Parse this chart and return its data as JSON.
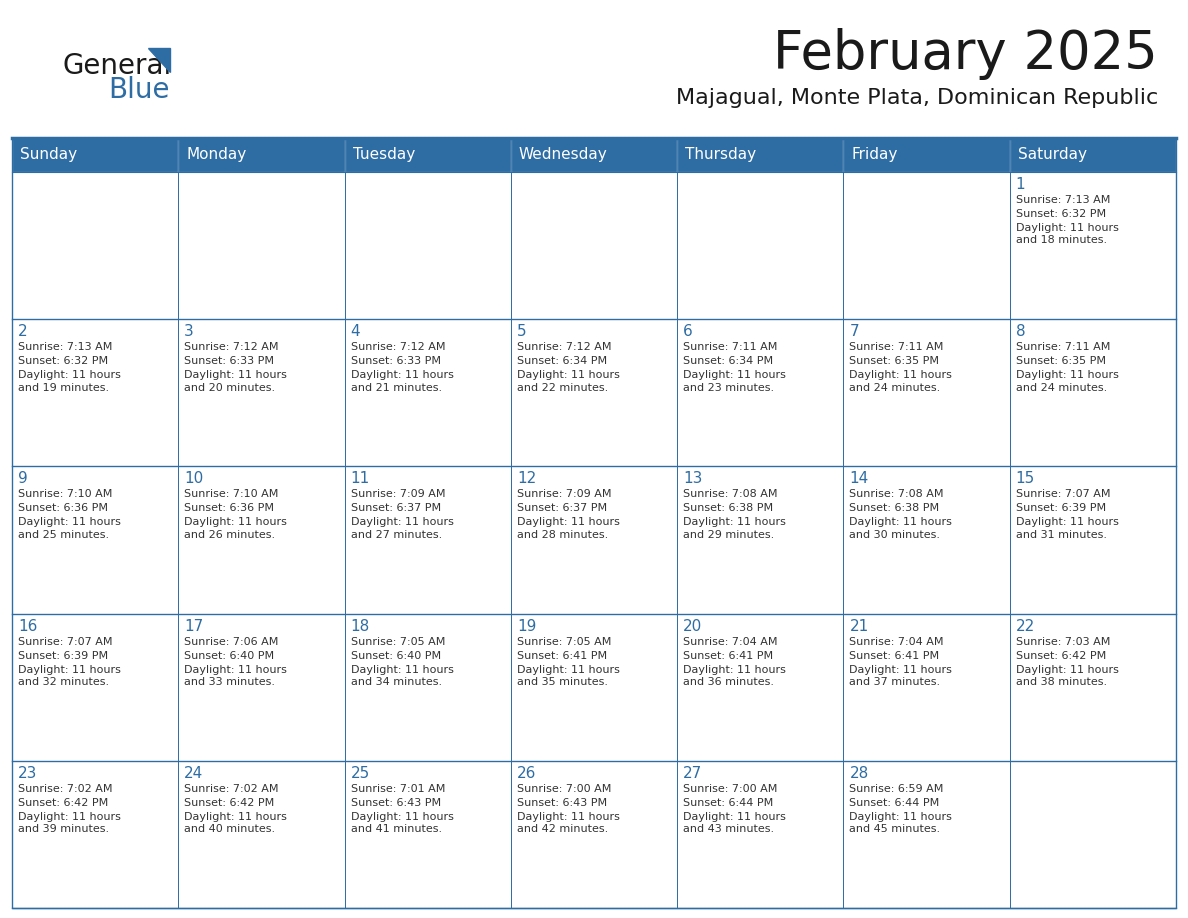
{
  "title": "February 2025",
  "subtitle": "Majagual, Monte Plata, Dominican Republic",
  "header_color": "#2e6da4",
  "header_text_color": "#ffffff",
  "border_color": "#2e6da4",
  "cell_bg_color": "#ffffff",
  "day_headers": [
    "Sunday",
    "Monday",
    "Tuesday",
    "Wednesday",
    "Thursday",
    "Friday",
    "Saturday"
  ],
  "title_color": "#1a1a1a",
  "subtitle_color": "#1a1a1a",
  "day_num_color": "#2e6da4",
  "info_color": "#333333",
  "logo_color_general": "#1a1a1a",
  "logo_color_blue": "#2e6da4",
  "logo_triangle_color": "#2e6da4",
  "calendar": [
    [
      null,
      null,
      null,
      null,
      null,
      null,
      {
        "day": "1",
        "sunrise": "7:13 AM",
        "sunset": "6:32 PM",
        "daylight": "11 hours\nand 18 minutes."
      }
    ],
    [
      {
        "day": "2",
        "sunrise": "7:13 AM",
        "sunset": "6:32 PM",
        "daylight": "11 hours\nand 19 minutes."
      },
      {
        "day": "3",
        "sunrise": "7:12 AM",
        "sunset": "6:33 PM",
        "daylight": "11 hours\nand 20 minutes."
      },
      {
        "day": "4",
        "sunrise": "7:12 AM",
        "sunset": "6:33 PM",
        "daylight": "11 hours\nand 21 minutes."
      },
      {
        "day": "5",
        "sunrise": "7:12 AM",
        "sunset": "6:34 PM",
        "daylight": "11 hours\nand 22 minutes."
      },
      {
        "day": "6",
        "sunrise": "7:11 AM",
        "sunset": "6:34 PM",
        "daylight": "11 hours\nand 23 minutes."
      },
      {
        "day": "7",
        "sunrise": "7:11 AM",
        "sunset": "6:35 PM",
        "daylight": "11 hours\nand 24 minutes."
      },
      {
        "day": "8",
        "sunrise": "7:11 AM",
        "sunset": "6:35 PM",
        "daylight": "11 hours\nand 24 minutes."
      }
    ],
    [
      {
        "day": "9",
        "sunrise": "7:10 AM",
        "sunset": "6:36 PM",
        "daylight": "11 hours\nand 25 minutes."
      },
      {
        "day": "10",
        "sunrise": "7:10 AM",
        "sunset": "6:36 PM",
        "daylight": "11 hours\nand 26 minutes."
      },
      {
        "day": "11",
        "sunrise": "7:09 AM",
        "sunset": "6:37 PM",
        "daylight": "11 hours\nand 27 minutes."
      },
      {
        "day": "12",
        "sunrise": "7:09 AM",
        "sunset": "6:37 PM",
        "daylight": "11 hours\nand 28 minutes."
      },
      {
        "day": "13",
        "sunrise": "7:08 AM",
        "sunset": "6:38 PM",
        "daylight": "11 hours\nand 29 minutes."
      },
      {
        "day": "14",
        "sunrise": "7:08 AM",
        "sunset": "6:38 PM",
        "daylight": "11 hours\nand 30 minutes."
      },
      {
        "day": "15",
        "sunrise": "7:07 AM",
        "sunset": "6:39 PM",
        "daylight": "11 hours\nand 31 minutes."
      }
    ],
    [
      {
        "day": "16",
        "sunrise": "7:07 AM",
        "sunset": "6:39 PM",
        "daylight": "11 hours\nand 32 minutes."
      },
      {
        "day": "17",
        "sunrise": "7:06 AM",
        "sunset": "6:40 PM",
        "daylight": "11 hours\nand 33 minutes."
      },
      {
        "day": "18",
        "sunrise": "7:05 AM",
        "sunset": "6:40 PM",
        "daylight": "11 hours\nand 34 minutes."
      },
      {
        "day": "19",
        "sunrise": "7:05 AM",
        "sunset": "6:41 PM",
        "daylight": "11 hours\nand 35 minutes."
      },
      {
        "day": "20",
        "sunrise": "7:04 AM",
        "sunset": "6:41 PM",
        "daylight": "11 hours\nand 36 minutes."
      },
      {
        "day": "21",
        "sunrise": "7:04 AM",
        "sunset": "6:41 PM",
        "daylight": "11 hours\nand 37 minutes."
      },
      {
        "day": "22",
        "sunrise": "7:03 AM",
        "sunset": "6:42 PM",
        "daylight": "11 hours\nand 38 minutes."
      }
    ],
    [
      {
        "day": "23",
        "sunrise": "7:02 AM",
        "sunset": "6:42 PM",
        "daylight": "11 hours\nand 39 minutes."
      },
      {
        "day": "24",
        "sunrise": "7:02 AM",
        "sunset": "6:42 PM",
        "daylight": "11 hours\nand 40 minutes."
      },
      {
        "day": "25",
        "sunrise": "7:01 AM",
        "sunset": "6:43 PM",
        "daylight": "11 hours\nand 41 minutes."
      },
      {
        "day": "26",
        "sunrise": "7:00 AM",
        "sunset": "6:43 PM",
        "daylight": "11 hours\nand 42 minutes."
      },
      {
        "day": "27",
        "sunrise": "7:00 AM",
        "sunset": "6:44 PM",
        "daylight": "11 hours\nand 43 minutes."
      },
      {
        "day": "28",
        "sunrise": "6:59 AM",
        "sunset": "6:44 PM",
        "daylight": "11 hours\nand 45 minutes."
      },
      null
    ]
  ]
}
